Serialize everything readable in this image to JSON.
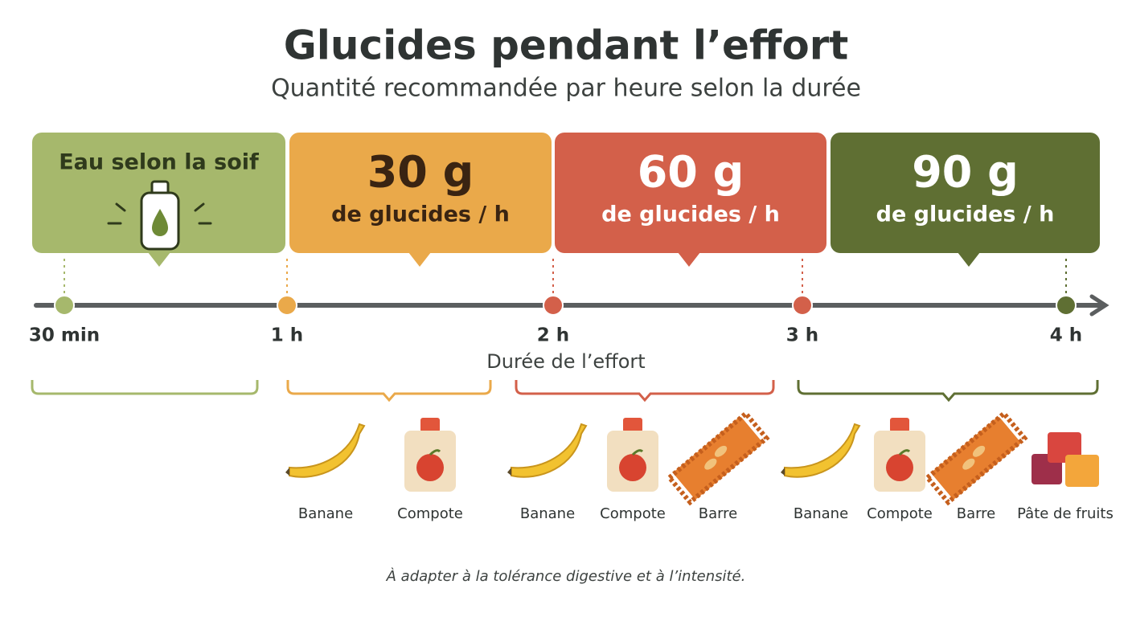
{
  "header": {
    "title": "Glucides pendant l’effort",
    "subtitle": "Quantité recommandée par heure selon la durée"
  },
  "boxes": [
    {
      "label": "Eau selon la soif"
    },
    {
      "amount": "30 g",
      "unit": "de glucides / h"
    },
    {
      "amount": "60 g",
      "unit": "de glucides / h"
    },
    {
      "amount": "90 g",
      "unit": "de glucides / h"
    }
  ],
  "timeline": {
    "ticks": [
      "30 min",
      "1 h",
      "2 h",
      "3 h",
      "4 h"
    ],
    "axis_label": "Durée de l’effort"
  },
  "food_groups": [
    {
      "items": [
        "Banane",
        "Compote"
      ]
    },
    {
      "items": [
        "Banane",
        "Compote",
        "Barre"
      ]
    },
    {
      "items": [
        "Banane",
        "Compote",
        "Barre",
        "Pâte de fruits"
      ]
    }
  ],
  "footnote": "À adapter à la tolérance digestive et à l’intensité."
}
